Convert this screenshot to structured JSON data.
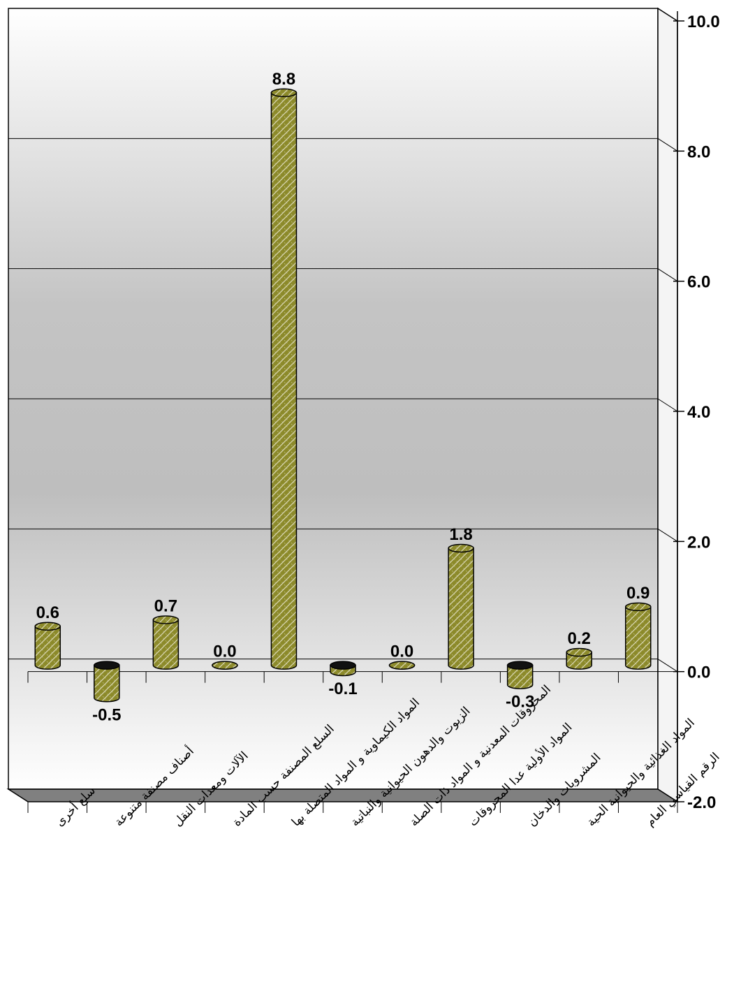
{
  "chart_data": {
    "type": "bar",
    "categories": [
      "سلع أخرى",
      "أصناف مصنفة متنوعة",
      "الآلات ومعدات النقل",
      "السلع المصنفة حسب المادة",
      "المواد الكيماوية و المواد المتصلة بها",
      "الزيوت والدهون الحيوانية والنباتية",
      "المحروقات المعدنية و المواد ذات الصلة",
      "المواد الأولية عدا المحروقات",
      "المشروبات والدخان",
      "المواد الغذائية والحيوانية الحية",
      "الرقم القياسي العام"
    ],
    "values": [
      0.6,
      -0.5,
      0.7,
      0.0,
      8.8,
      -0.1,
      0.0,
      1.8,
      -0.3,
      0.2,
      0.9
    ],
    "value_labels": [
      "0.6",
      "-0.5",
      "0.7",
      "0.0",
      "8.8",
      "-0.1",
      "0.0",
      "1.8",
      "-0.3",
      "0.2",
      "0.9"
    ],
    "ylim": [
      -2.0,
      10.0
    ],
    "yticks": [
      -2.0,
      0.0,
      2.0,
      4.0,
      6.0,
      8.0,
      10.0
    ],
    "ytick_labels": [
      "-2.0",
      "0.0",
      "2.0",
      "4.0",
      "6.0",
      "8.0",
      "10.0"
    ],
    "title": "",
    "xlabel": "",
    "ylabel": "",
    "grid": true,
    "axis_position": "right",
    "colors": {
      "bar_fill": "#8c8a2a",
      "bar_pattern": "#d8d6b0",
      "bar_edge": "#000000",
      "floor": "#808080"
    }
  }
}
